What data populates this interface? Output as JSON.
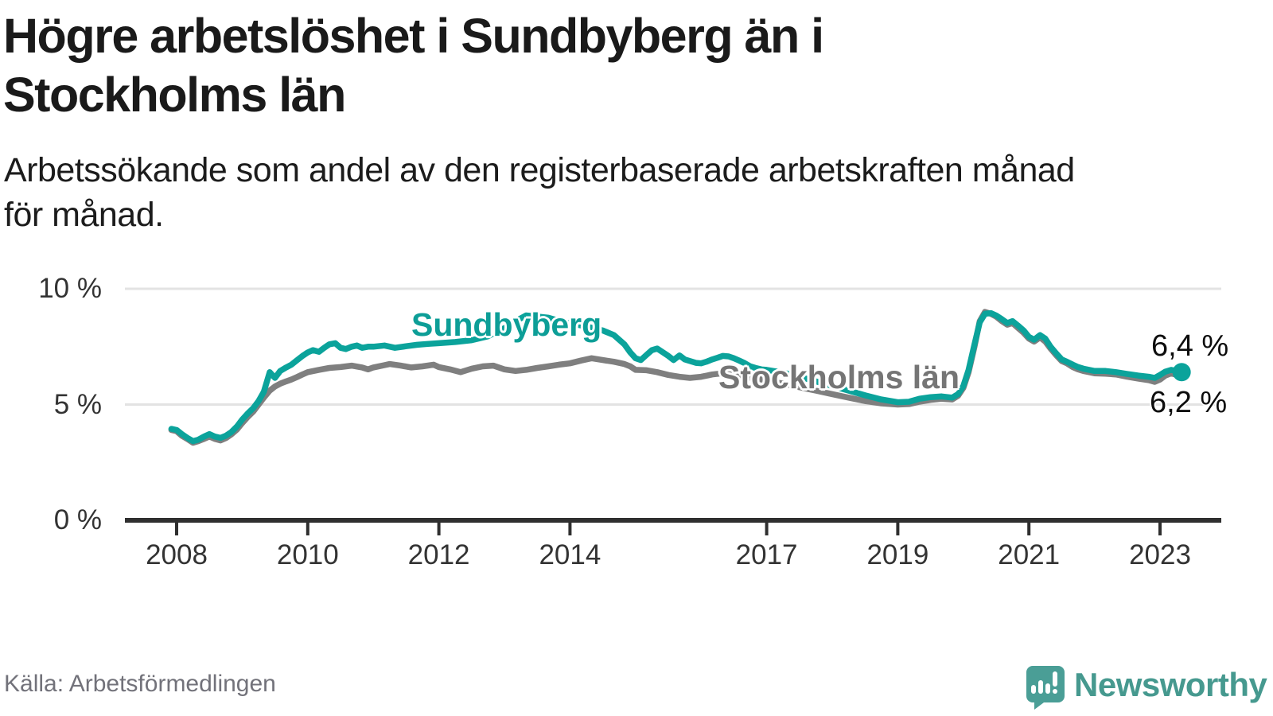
{
  "header": {
    "title_line1": "Högre arbetslöshet i Sundbyberg än i",
    "title_line2": "Stockholms län",
    "subtitle_line1": "Arbetssökande som andel av den registerbaserade arbetskraften månad",
    "subtitle_line2": "för månad."
  },
  "footer": {
    "source": "Källa: Arbetsförmedlingen",
    "brand": "Newsworthy"
  },
  "colors": {
    "sundbyberg": "#0ba39b",
    "stockholm": "#7f7f7f",
    "sundbyberg_label": "#0d9e97",
    "stockholm_label": "#757575",
    "axis": "#2f2f2f",
    "gridline": "#e3e3e3",
    "logo": "#4a9e96",
    "brand_text": "#46998f"
  },
  "chart_data": {
    "type": "line",
    "title": "Högre arbetslöshet i Sundbyberg än i Stockholms län",
    "subtitle": "Arbetssökande som andel av den registerbaserade arbetskraften månad för månad.",
    "unit": "%",
    "xlim": [
      2007.9,
      2023.6
    ],
    "ylim": [
      0,
      10
    ],
    "grid": "horizontal",
    "legend_position": "inline-labels",
    "x_ticks": [
      2008,
      2010,
      2012,
      2014,
      2017,
      2019,
      2021,
      2023
    ],
    "y_ticks": [
      {
        "value": 0,
        "label": "0 %"
      },
      {
        "value": 5,
        "label": "5 %"
      },
      {
        "value": 10,
        "label": "10 %"
      }
    ],
    "annotations": {
      "sundbyberg_line_label": "Sundbyberg",
      "stockholm_line_label": "Stockholms län",
      "end_value_sundbyberg": "6,4 %",
      "end_value_stockholm": "6,2 %"
    },
    "series": [
      {
        "name": "Stockholms län",
        "color": "#7f7f7f",
        "end_label": "6,2 %",
        "points": [
          [
            2007.92,
            3.9
          ],
          [
            2008.0,
            3.85
          ],
          [
            2008.08,
            3.65
          ],
          [
            2008.17,
            3.5
          ],
          [
            2008.25,
            3.35
          ],
          [
            2008.33,
            3.42
          ],
          [
            2008.42,
            3.52
          ],
          [
            2008.5,
            3.62
          ],
          [
            2008.58,
            3.52
          ],
          [
            2008.67,
            3.45
          ],
          [
            2008.75,
            3.55
          ],
          [
            2008.83,
            3.7
          ],
          [
            2008.92,
            3.92
          ],
          [
            2009.0,
            4.2
          ],
          [
            2009.08,
            4.45
          ],
          [
            2009.17,
            4.7
          ],
          [
            2009.25,
            5.0
          ],
          [
            2009.33,
            5.3
          ],
          [
            2009.42,
            5.6
          ],
          [
            2009.5,
            5.78
          ],
          [
            2009.58,
            5.9
          ],
          [
            2009.67,
            6.0
          ],
          [
            2009.75,
            6.08
          ],
          [
            2009.83,
            6.18
          ],
          [
            2009.92,
            6.3
          ],
          [
            2010.0,
            6.4
          ],
          [
            2010.17,
            6.5
          ],
          [
            2010.33,
            6.58
          ],
          [
            2010.5,
            6.62
          ],
          [
            2010.67,
            6.68
          ],
          [
            2010.83,
            6.6
          ],
          [
            2010.92,
            6.52
          ],
          [
            2011.0,
            6.6
          ],
          [
            2011.17,
            6.7
          ],
          [
            2011.25,
            6.75
          ],
          [
            2011.42,
            6.68
          ],
          [
            2011.58,
            6.6
          ],
          [
            2011.75,
            6.65
          ],
          [
            2011.92,
            6.72
          ],
          [
            2012.0,
            6.62
          ],
          [
            2012.17,
            6.52
          ],
          [
            2012.33,
            6.4
          ],
          [
            2012.5,
            6.55
          ],
          [
            2012.67,
            6.65
          ],
          [
            2012.83,
            6.68
          ],
          [
            2013.0,
            6.52
          ],
          [
            2013.17,
            6.45
          ],
          [
            2013.33,
            6.5
          ],
          [
            2013.5,
            6.58
          ],
          [
            2013.67,
            6.65
          ],
          [
            2013.83,
            6.72
          ],
          [
            2014.0,
            6.78
          ],
          [
            2014.17,
            6.9
          ],
          [
            2014.33,
            7.0
          ],
          [
            2014.5,
            6.92
          ],
          [
            2014.67,
            6.85
          ],
          [
            2014.83,
            6.75
          ],
          [
            2014.92,
            6.65
          ],
          [
            2015.0,
            6.5
          ],
          [
            2015.17,
            6.48
          ],
          [
            2015.33,
            6.4
          ],
          [
            2015.5,
            6.28
          ],
          [
            2015.67,
            6.2
          ],
          [
            2015.83,
            6.15
          ],
          [
            2016.0,
            6.2
          ],
          [
            2016.17,
            6.3
          ],
          [
            2016.33,
            6.35
          ],
          [
            2016.5,
            6.28
          ],
          [
            2016.67,
            6.2
          ],
          [
            2016.83,
            6.12
          ],
          [
            2017.0,
            6.05
          ],
          [
            2017.25,
            5.9
          ],
          [
            2017.5,
            5.75
          ],
          [
            2017.75,
            5.6
          ],
          [
            2018.0,
            5.45
          ],
          [
            2018.25,
            5.3
          ],
          [
            2018.5,
            5.15
          ],
          [
            2018.75,
            5.05
          ],
          [
            2019.0,
            5.0
          ],
          [
            2019.17,
            5.02
          ],
          [
            2019.33,
            5.12
          ],
          [
            2019.5,
            5.2
          ],
          [
            2019.67,
            5.25
          ],
          [
            2019.83,
            5.22
          ],
          [
            2019.92,
            5.38
          ],
          [
            2020.0,
            5.72
          ],
          [
            2020.08,
            6.4
          ],
          [
            2020.17,
            7.5
          ],
          [
            2020.25,
            8.6
          ],
          [
            2020.33,
            9.0
          ],
          [
            2020.42,
            8.92
          ],
          [
            2020.5,
            8.8
          ],
          [
            2020.58,
            8.62
          ],
          [
            2020.67,
            8.45
          ],
          [
            2020.75,
            8.52
          ],
          [
            2020.83,
            8.32
          ],
          [
            2020.92,
            8.1
          ],
          [
            2021.0,
            7.85
          ],
          [
            2021.08,
            7.72
          ],
          [
            2021.17,
            7.9
          ],
          [
            2021.25,
            7.72
          ],
          [
            2021.33,
            7.42
          ],
          [
            2021.42,
            7.12
          ],
          [
            2021.5,
            6.88
          ],
          [
            2021.58,
            6.78
          ],
          [
            2021.67,
            6.62
          ],
          [
            2021.75,
            6.52
          ],
          [
            2021.83,
            6.45
          ],
          [
            2021.92,
            6.4
          ],
          [
            2022.0,
            6.35
          ],
          [
            2022.17,
            6.33
          ],
          [
            2022.33,
            6.3
          ],
          [
            2022.5,
            6.2
          ],
          [
            2022.67,
            6.12
          ],
          [
            2022.83,
            6.05
          ],
          [
            2022.92,
            5.98
          ],
          [
            2023.0,
            6.08
          ],
          [
            2023.08,
            6.25
          ],
          [
            2023.17,
            6.35
          ],
          [
            2023.25,
            6.28
          ],
          [
            2023.33,
            6.2
          ]
        ]
      },
      {
        "name": "Sundbyberg",
        "color": "#0ba39b",
        "end_label": "6,4 %",
        "points": [
          [
            2007.92,
            3.95
          ],
          [
            2008.0,
            3.9
          ],
          [
            2008.08,
            3.72
          ],
          [
            2008.17,
            3.55
          ],
          [
            2008.25,
            3.42
          ],
          [
            2008.33,
            3.48
          ],
          [
            2008.42,
            3.62
          ],
          [
            2008.5,
            3.72
          ],
          [
            2008.58,
            3.62
          ],
          [
            2008.67,
            3.56
          ],
          [
            2008.75,
            3.65
          ],
          [
            2008.83,
            3.8
          ],
          [
            2008.92,
            4.05
          ],
          [
            2009.0,
            4.35
          ],
          [
            2009.08,
            4.6
          ],
          [
            2009.17,
            4.85
          ],
          [
            2009.25,
            5.15
          ],
          [
            2009.33,
            5.55
          ],
          [
            2009.42,
            6.4
          ],
          [
            2009.5,
            6.15
          ],
          [
            2009.58,
            6.45
          ],
          [
            2009.67,
            6.6
          ],
          [
            2009.75,
            6.72
          ],
          [
            2009.83,
            6.9
          ],
          [
            2009.92,
            7.1
          ],
          [
            2010.0,
            7.25
          ],
          [
            2010.08,
            7.35
          ],
          [
            2010.17,
            7.28
          ],
          [
            2010.25,
            7.45
          ],
          [
            2010.33,
            7.6
          ],
          [
            2010.42,
            7.65
          ],
          [
            2010.5,
            7.45
          ],
          [
            2010.58,
            7.4
          ],
          [
            2010.67,
            7.5
          ],
          [
            2010.75,
            7.55
          ],
          [
            2010.83,
            7.45
          ],
          [
            2010.92,
            7.5
          ],
          [
            2011.0,
            7.5
          ],
          [
            2011.17,
            7.55
          ],
          [
            2011.33,
            7.45
          ],
          [
            2011.5,
            7.52
          ],
          [
            2011.67,
            7.58
          ],
          [
            2011.83,
            7.62
          ],
          [
            2012.0,
            7.65
          ],
          [
            2012.25,
            7.7
          ],
          [
            2012.5,
            7.78
          ],
          [
            2012.75,
            7.95
          ],
          [
            2013.0,
            8.3
          ],
          [
            2013.17,
            8.6
          ],
          [
            2013.33,
            8.85
          ],
          [
            2013.5,
            8.8
          ],
          [
            2013.67,
            8.75
          ],
          [
            2013.83,
            8.62
          ],
          [
            2014.0,
            8.5
          ],
          [
            2014.17,
            8.42
          ],
          [
            2014.33,
            8.32
          ],
          [
            2014.5,
            8.2
          ],
          [
            2014.67,
            8.0
          ],
          [
            2014.83,
            7.6
          ],
          [
            2014.92,
            7.25
          ],
          [
            2015.0,
            7.0
          ],
          [
            2015.08,
            6.92
          ],
          [
            2015.17,
            7.15
          ],
          [
            2015.25,
            7.35
          ],
          [
            2015.33,
            7.42
          ],
          [
            2015.42,
            7.25
          ],
          [
            2015.5,
            7.1
          ],
          [
            2015.58,
            6.92
          ],
          [
            2015.67,
            7.12
          ],
          [
            2015.75,
            6.95
          ],
          [
            2015.83,
            6.88
          ],
          [
            2015.92,
            6.8
          ],
          [
            2016.0,
            6.78
          ],
          [
            2016.08,
            6.85
          ],
          [
            2016.17,
            6.95
          ],
          [
            2016.25,
            7.02
          ],
          [
            2016.33,
            7.1
          ],
          [
            2016.42,
            7.08
          ],
          [
            2016.5,
            7.0
          ],
          [
            2016.58,
            6.9
          ],
          [
            2016.67,
            6.78
          ],
          [
            2016.75,
            6.65
          ],
          [
            2016.83,
            6.58
          ],
          [
            2016.92,
            6.52
          ],
          [
            2017.0,
            6.5
          ],
          [
            2017.25,
            6.38
          ],
          [
            2017.5,
            6.2
          ],
          [
            2017.75,
            6.0
          ],
          [
            2018.0,
            5.8
          ],
          [
            2018.25,
            5.6
          ],
          [
            2018.5,
            5.4
          ],
          [
            2018.75,
            5.22
          ],
          [
            2019.0,
            5.1
          ],
          [
            2019.17,
            5.12
          ],
          [
            2019.33,
            5.25
          ],
          [
            2019.5,
            5.32
          ],
          [
            2019.67,
            5.35
          ],
          [
            2019.83,
            5.3
          ],
          [
            2019.92,
            5.45
          ],
          [
            2020.0,
            5.8
          ],
          [
            2020.08,
            6.5
          ],
          [
            2020.17,
            7.6
          ],
          [
            2020.25,
            8.55
          ],
          [
            2020.33,
            8.92
          ],
          [
            2020.42,
            8.95
          ],
          [
            2020.5,
            8.85
          ],
          [
            2020.58,
            8.7
          ],
          [
            2020.67,
            8.52
          ],
          [
            2020.75,
            8.6
          ],
          [
            2020.83,
            8.42
          ],
          [
            2020.92,
            8.2
          ],
          [
            2021.0,
            7.92
          ],
          [
            2021.08,
            7.8
          ],
          [
            2021.17,
            8.0
          ],
          [
            2021.25,
            7.85
          ],
          [
            2021.33,
            7.5
          ],
          [
            2021.42,
            7.2
          ],
          [
            2021.5,
            6.95
          ],
          [
            2021.58,
            6.85
          ],
          [
            2021.67,
            6.72
          ],
          [
            2021.75,
            6.62
          ],
          [
            2021.83,
            6.55
          ],
          [
            2021.92,
            6.5
          ],
          [
            2022.0,
            6.45
          ],
          [
            2022.17,
            6.45
          ],
          [
            2022.33,
            6.4
          ],
          [
            2022.5,
            6.32
          ],
          [
            2022.67,
            6.25
          ],
          [
            2022.83,
            6.2
          ],
          [
            2022.92,
            6.15
          ],
          [
            2023.0,
            6.28
          ],
          [
            2023.08,
            6.42
          ],
          [
            2023.17,
            6.5
          ],
          [
            2023.25,
            6.45
          ],
          [
            2023.33,
            6.4
          ]
        ]
      }
    ]
  }
}
